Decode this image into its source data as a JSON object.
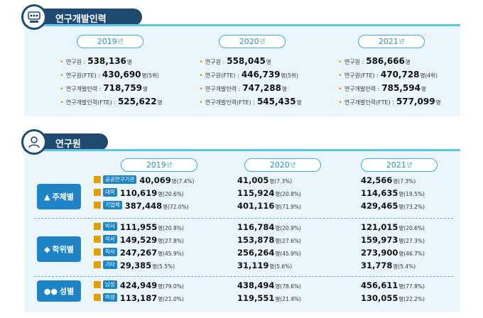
{
  "section1": {
    "title": "연구개발인력",
    "years": [
      {
        "year": "2019",
        "suffix": "년",
        "stats": [
          {
            "label": "연구원 :",
            "value": "538,136",
            "unit": "명"
          },
          {
            "label": "연구원(FTE) :",
            "value": "430,690",
            "unit": "명(5위)"
          },
          {
            "label": "연구개발인력 :",
            "value": "718,759",
            "unit": "명"
          },
          {
            "label": "연구개발인력(FTE) :",
            "value": "525,622",
            "unit": "명"
          }
        ]
      },
      {
        "year": "2020",
        "suffix": "년",
        "stats": [
          {
            "label": "연구원 :",
            "value": "558,045",
            "unit": "명"
          },
          {
            "label": "연구원(FTE) :",
            "value": "446,739",
            "unit": "명(5위)"
          },
          {
            "label": "연구개발인력 :",
            "value": "747,288",
            "unit": "명"
          },
          {
            "label": "연구개발인력(FTE) :",
            "value": "545,435",
            "unit": "명"
          }
        ]
      },
      {
        "year": "2021",
        "suffix": "년",
        "stats": [
          {
            "label": "연구원 :",
            "value": "586,666",
            "unit": "명"
          },
          {
            "label": "연구원(FTE) :",
            "value": "470,728",
            "unit": "명(4위)"
          },
          {
            "label": "연구개발인력 :",
            "value": "785,594",
            "unit": "명"
          },
          {
            "label": "연구개발인력(FTE) :",
            "value": "577,099",
            "unit": "명"
          }
        ]
      }
    ]
  },
  "section2": {
    "title": "연구원",
    "years": [
      {
        "year": "2019",
        "suffix": "년"
      },
      {
        "year": "2020",
        "suffix": "년"
      },
      {
        "year": "2021",
        "suffix": "년"
      }
    ],
    "groups": [
      {
        "name": "주체별",
        "rows": [
          {
            "tag": "공공연구기관",
            "cells": [
              {
                "num": "40,069",
                "unit": "명",
                "pct": "(7.4%)"
              },
              {
                "num": "41,005",
                "unit": "명",
                "pct": "(7.3%)"
              },
              {
                "num": "42,566",
                "unit": "명",
                "pct": "(7.3%)"
              }
            ]
          },
          {
            "tag": "대학",
            "cells": [
              {
                "num": "110,619",
                "unit": "명",
                "pct": "(20.6%)"
              },
              {
                "num": "115,924",
                "unit": "명",
                "pct": "(20.8%)"
              },
              {
                "num": "114,635",
                "unit": "명",
                "pct": "(19.5%)"
              }
            ]
          },
          {
            "tag": "기업체",
            "cells": [
              {
                "num": "387,448",
                "unit": "명",
                "pct": "(72.0%)"
              },
              {
                "num": "401,116",
                "unit": "명",
                "pct": "(71.9%)"
              },
              {
                "num": "429,465",
                "unit": "명",
                "pct": "(73.2%)"
              }
            ]
          }
        ]
      },
      {
        "name": "학위별",
        "rows": [
          {
            "tag": "박사",
            "cells": [
              {
                "num": "111,955",
                "unit": "명",
                "pct": "(20.8%)"
              },
              {
                "num": "116,784",
                "unit": "명",
                "pct": "(20.9%)"
              },
              {
                "num": "121,015",
                "unit": "명",
                "pct": "(20.6%)"
              }
            ]
          },
          {
            "tag": "석사",
            "cells": [
              {
                "num": "149,529",
                "unit": "명",
                "pct": "(27.8%)"
              },
              {
                "num": "153,878",
                "unit": "명",
                "pct": "(27.6%)"
              },
              {
                "num": "159,973",
                "unit": "명",
                "pct": "(27.3%)"
              }
            ]
          },
          {
            "tag": "학사",
            "cells": [
              {
                "num": "247,267",
                "unit": "명",
                "pct": "(45.9%)"
              },
              {
                "num": "256,264",
                "unit": "명",
                "pct": "(45.9%)"
              },
              {
                "num": "273,900",
                "unit": "명",
                "pct": "(46.7%)"
              }
            ]
          },
          {
            "tag": "기타",
            "cells": [
              {
                "num": "29,385",
                "unit": "명",
                "pct": "(5.5%)"
              },
              {
                "num": "31,119",
                "unit": "명",
                "pct": "(5.6%)"
              },
              {
                "num": "31,778",
                "unit": "명",
                "pct": "(5.4%)"
              }
            ]
          }
        ]
      },
      {
        "name": "성별",
        "rows": [
          {
            "tag": "남성",
            "cells": [
              {
                "num": "424,949",
                "unit": "명",
                "pct": "(79.0%)"
              },
              {
                "num": "438,494",
                "unit": "명",
                "pct": "(78.6%)"
              },
              {
                "num": "456,611",
                "unit": "명",
                "pct": "(77.8%)"
              }
            ]
          },
          {
            "tag": "여성",
            "cells": [
              {
                "num": "113,187",
                "unit": "명",
                "pct": "(21.0%)"
              },
              {
                "num": "119,551",
                "unit": "명",
                "pct": "(21.4%)"
              },
              {
                "num": "130,055",
                "unit": "명",
                "pct": "(22.2%)"
              }
            ]
          }
        ]
      }
    ]
  },
  "colors": {
    "navy": "#1f4b70",
    "accent": "#1e84c6",
    "light": "#eaf6fb",
    "pill": "#3aa9d9"
  }
}
